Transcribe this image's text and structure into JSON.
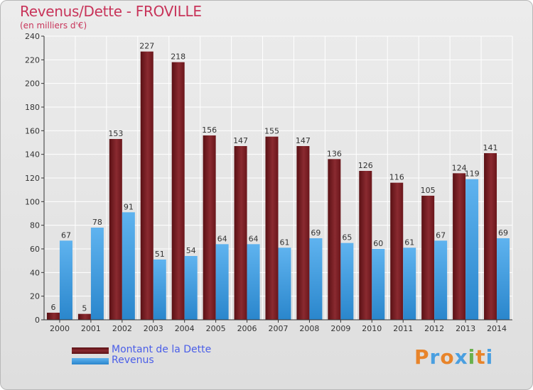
{
  "title": "Revenus/Dette - FROVILLE",
  "subtitle": "(en milliers d'€)",
  "colors": {
    "dette": "#7a1f24",
    "revenus": "#3d9ee3",
    "title": "#c8345a",
    "legend_text": "#4a5ee8"
  },
  "logo": {
    "text": "Proxiti",
    "letters": [
      "P",
      "r",
      "o",
      "x",
      "i",
      "t",
      "i"
    ],
    "colors": [
      "#e8842a",
      "#4a9fe0",
      "#e8842a",
      "#4a9fe0",
      "#6ab04c",
      "#e8842a",
      "#4a9fe0"
    ]
  },
  "legend": [
    {
      "label": "Montant de la Dette",
      "color": "#7a1f24"
    },
    {
      "label": "Revenus",
      "color": "#3d9ee3"
    }
  ],
  "chart_data": {
    "type": "bar",
    "title": "Revenus/Dette - FROVILLE",
    "subtitle": "(en milliers d'€)",
    "categories": [
      "2000",
      "2001",
      "2002",
      "2003",
      "2004",
      "2005",
      "2006",
      "2007",
      "2008",
      "2009",
      "2010",
      "2011",
      "2012",
      "2013",
      "2014"
    ],
    "series": [
      {
        "name": "Montant de la Dette",
        "values": [
          6,
          5,
          153,
          227,
          218,
          156,
          147,
          155,
          147,
          136,
          126,
          116,
          105,
          124,
          141
        ]
      },
      {
        "name": "Revenus",
        "values": [
          67,
          78,
          91,
          51,
          54,
          64,
          64,
          61,
          69,
          65,
          60,
          61,
          67,
          119,
          69
        ]
      }
    ],
    "ylim": [
      0,
      240
    ],
    "yticks": [
      0,
      20,
      40,
      60,
      80,
      100,
      120,
      140,
      160,
      180,
      200,
      220,
      240
    ],
    "grid": true,
    "legend_position": "bottom-left"
  }
}
